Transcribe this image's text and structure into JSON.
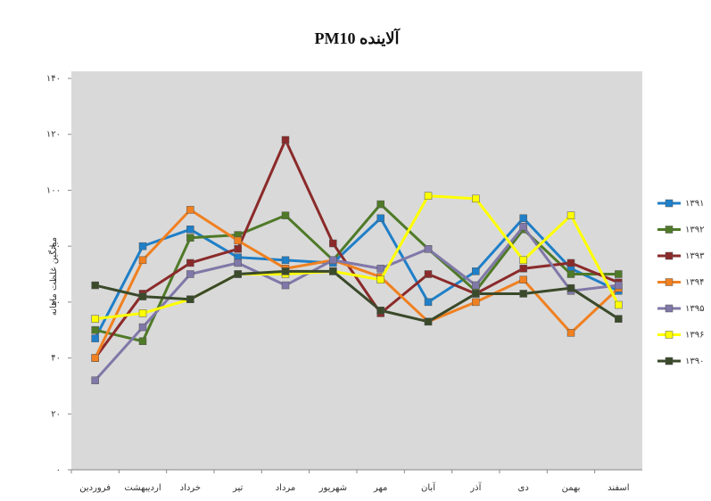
{
  "chart_data": {
    "type": "line",
    "title": "آلاینده PM10",
    "y_label": "میانگین غلظت ماهانه",
    "categories": [
      "فروردین",
      "اردیبهشت",
      "خرداد",
      "تیر",
      "مرداد",
      "شهریور",
      "مهر",
      "آبان",
      "آذر",
      "دی",
      "بهمن",
      "اسفند"
    ],
    "ylim": [
      0,
      140
    ],
    "yticks": [
      {
        "value": 0,
        "label": "۰"
      },
      {
        "value": 20,
        "label": "۲۰"
      },
      {
        "value": 40,
        "label": "۴۰"
      },
      {
        "value": 60,
        "label": "۶۰"
      },
      {
        "value": 80,
        "label": "۸۰"
      },
      {
        "value": 100,
        "label": "۱۰۰"
      },
      {
        "value": 120,
        "label": "۱۲۰"
      },
      {
        "value": 140,
        "label": "۱۴۰"
      }
    ],
    "legend": "right",
    "series": [
      {
        "name": "۱۳۹۱",
        "color": "#1f7fc8",
        "values": [
          47,
          80,
          86,
          76,
          75,
          74,
          90,
          60,
          71,
          90,
          72,
          64
        ]
      },
      {
        "name": "۱۳۹۲",
        "color": "#4f7a28",
        "values": [
          50,
          46,
          83,
          84,
          91,
          75,
          95,
          79,
          64,
          86,
          70,
          70
        ]
      },
      {
        "name": "۱۳۹۳",
        "color": "#8b2a2a",
        "values": [
          40,
          63,
          74,
          79,
          118,
          81,
          56,
          70,
          63,
          72,
          74,
          67
        ]
      },
      {
        "name": "۱۳۹۴",
        "color": "#f08020",
        "values": [
          40,
          75,
          93,
          82,
          72,
          75,
          69,
          53,
          60,
          68,
          49,
          65
        ]
      },
      {
        "name": "۱۳۹۵",
        "color": "#8078a8",
        "values": [
          32,
          51,
          70,
          74,
          66,
          75,
          72,
          79,
          66,
          87,
          64,
          66
        ]
      },
      {
        "name": "۱۳۹۶",
        "color": "#ffff00",
        "values": [
          54,
          56,
          61,
          70,
          70,
          71,
          68,
          98,
          97,
          75,
          91,
          59
        ]
      },
      {
        "name": "۱۳۹۰",
        "color": "#3a4a2a",
        "values": [
          66,
          62,
          61,
          70,
          71,
          71,
          57,
          53,
          63,
          63,
          65,
          54
        ]
      }
    ]
  }
}
